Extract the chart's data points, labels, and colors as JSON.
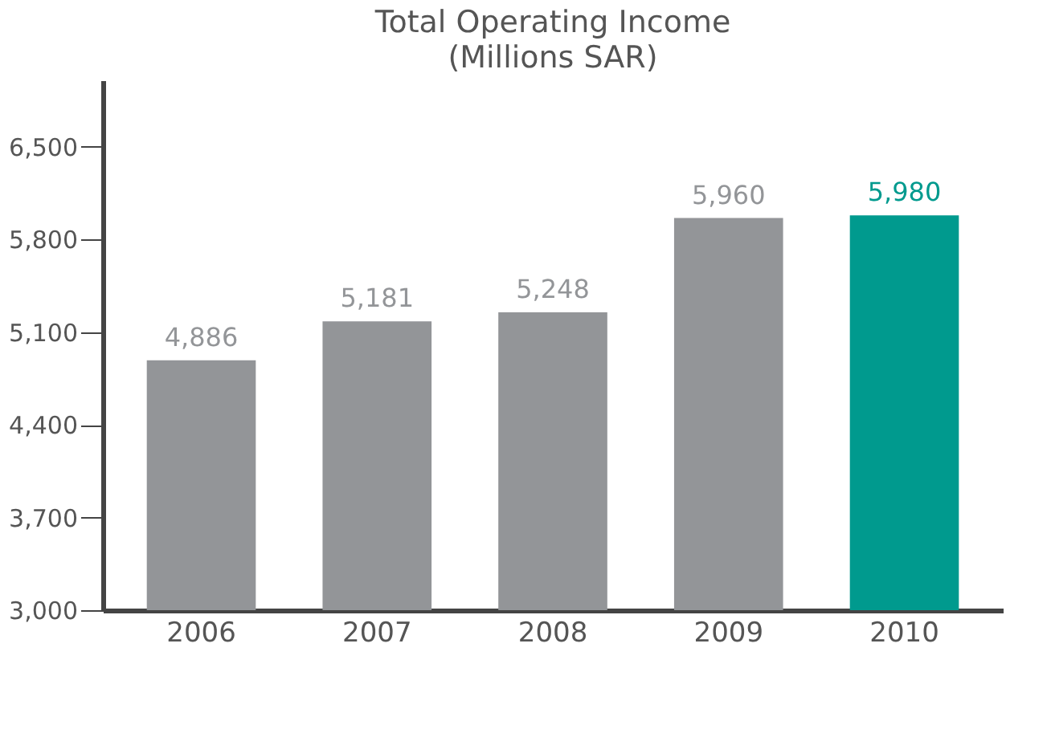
{
  "chart_data": {
    "type": "bar",
    "title": "Total Operating Income",
    "subtitle": "(Millions SAR)",
    "categories": [
      "2006",
      "2007",
      "2008",
      "2009",
      "2010"
    ],
    "values": [
      4886,
      5181,
      5248,
      5960,
      5980
    ],
    "colors": [
      "#939598",
      "#939598",
      "#939598",
      "#939598",
      "#009a8e"
    ],
    "ylim": [
      3000,
      7000
    ],
    "yticks": [
      {
        "value": 3000,
        "label": "3,000"
      },
      {
        "value": 3700,
        "label": "3,700"
      },
      {
        "value": 4400,
        "label": "4,400"
      },
      {
        "value": 5100,
        "label": "5,100"
      },
      {
        "value": 5800,
        "label": "5,800"
      },
      {
        "value": 6500,
        "label": "6,500"
      }
    ],
    "value_labels": [
      "4,886",
      "5,181",
      "5,248",
      "5,960",
      "5,980"
    ],
    "grid": false
  }
}
